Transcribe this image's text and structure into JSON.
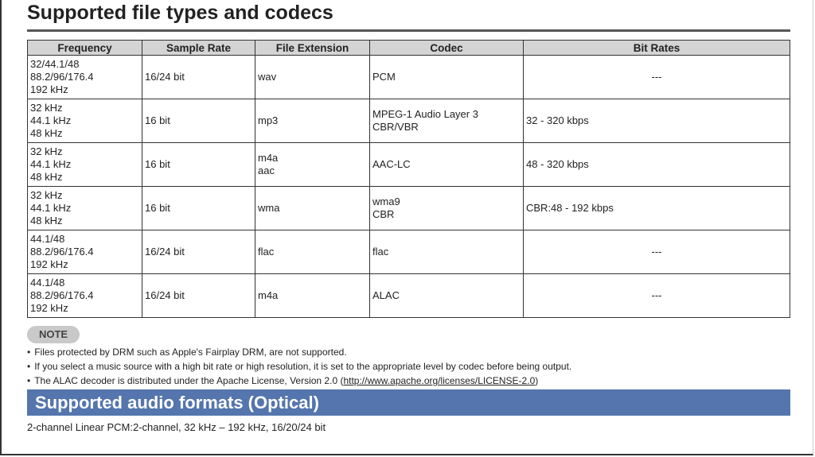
{
  "title": "Supported file types and codecs",
  "table": {
    "headers": [
      "Frequency",
      "Sample Rate",
      "File Extension",
      "Codec",
      "Bit Rates"
    ],
    "rows": [
      [
        "32/44.1/48\n88.2/96/176.4\n192 kHz",
        "16/24 bit",
        "wav",
        "PCM",
        "---"
      ],
      [
        "32 kHz\n44.1 kHz\n48 kHz",
        "16 bit",
        "mp3",
        "MPEG-1 Audio Layer 3\nCBR/VBR",
        "32 - 320 kbps"
      ],
      [
        "32 kHz\n44.1 kHz\n48 kHz",
        "16 bit",
        "m4a\naac",
        "AAC-LC",
        "48 - 320 kbps"
      ],
      [
        "32 kHz\n44.1 kHz\n48 kHz",
        "16 bit",
        "wma",
        "wma9\nCBR",
        "CBR:48 - 192 kbps"
      ],
      [
        "44.1/48\n88.2/96/176.4\n192 kHz",
        "16/24 bit",
        "flac",
        "flac",
        "---"
      ],
      [
        "44.1/48\n88.2/96/176.4\n192 kHz",
        "16/24 bit",
        "m4a",
        "ALAC",
        "---"
      ]
    ]
  },
  "note": {
    "label": "NOTE",
    "items": [
      "Files protected by DRM such as Apple's Fairplay DRM, are not supported.",
      "If you select a music source with a high bit rate or high resolution, it is set to the appropriate level by codec before being output."
    ],
    "license_text": "The ALAC decoder is distributed under the Apache License, Version 2.0 (",
    "license_link": "http://www.apache.org/licenses/LICENSE-2.0",
    "license_close": ")"
  },
  "optical": {
    "heading": "Supported audio formats (Optical)",
    "text": "2-channel Linear PCM:2-channel, 32 kHz – 192 kHz, 16/20/24 bit"
  },
  "colors": {
    "band": "#5475ad",
    "header": "#d4d4d4"
  }
}
